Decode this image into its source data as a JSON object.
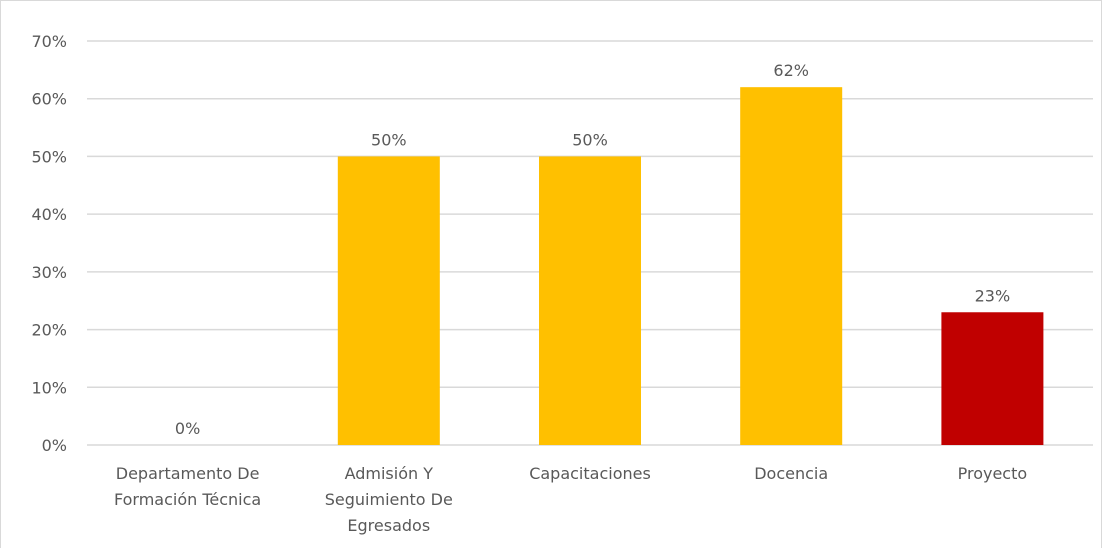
{
  "chart_data": {
    "type": "bar",
    "categories": [
      [
        "Departamento De",
        "Formación Técnica"
      ],
      [
        "Admisión Y",
        "Seguimiento De",
        "Egresados"
      ],
      [
        "Capacitaciones"
      ],
      [
        "Docencia"
      ],
      [
        "Proyecto"
      ]
    ],
    "values": [
      0,
      50,
      50,
      62,
      23
    ],
    "data_labels": [
      "0%",
      "50%",
      "50%",
      "62%",
      "23%"
    ],
    "bar_colors": [
      "#ffc000",
      "#ffc000",
      "#ffc000",
      "#ffc000",
      "#c00000"
    ],
    "ylim": [
      0,
      70
    ],
    "yticks": [
      0,
      10,
      20,
      30,
      40,
      50,
      60,
      70
    ],
    "ytick_labels": [
      "0%",
      "10%",
      "20%",
      "30%",
      "40%",
      "50%",
      "60%",
      "70%"
    ],
    "grid": true,
    "gridline_color": "#d9d9d9",
    "title": "",
    "xlabel": "",
    "ylabel": ""
  }
}
